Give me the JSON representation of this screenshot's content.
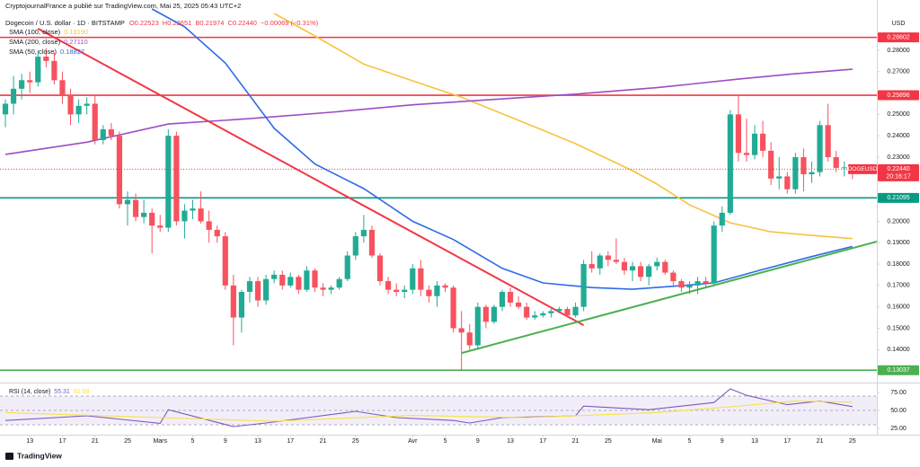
{
  "chart_data": {
    "type": "candlestick",
    "header": {
      "publisher": "CryptojournalFrance a publié sur TradingView.com, Mai 25, 2025 05:43 UTC+2",
      "symbol": "Dogecoin / U.S. dollar · 1D · BITSTAMP",
      "ohlc": [
        "O0.22523",
        "H0.22651",
        "B0.21974",
        "C0.22440",
        "−0.00069 (−0.31%)"
      ]
    },
    "currency": "USD",
    "up_color": "#22ab94",
    "down_color": "#f7525f",
    "x": [
      "2025-02-10",
      "2025-02-11",
      "2025-02-12",
      "2025-02-13",
      "2025-02-14",
      "2025-02-15",
      "2025-02-16",
      "2025-02-17",
      "2025-02-18",
      "2025-02-19",
      "2025-02-20",
      "2025-02-21",
      "2025-02-22",
      "2025-02-23",
      "2025-02-24",
      "2025-02-25",
      "2025-02-26",
      "2025-02-27",
      "2025-02-28",
      "2025-03-01",
      "2025-03-02",
      "2025-03-03",
      "2025-03-04",
      "2025-03-05",
      "2025-03-06",
      "2025-03-07",
      "2025-03-08",
      "2025-03-09",
      "2025-03-10",
      "2025-03-11",
      "2025-03-12",
      "2025-03-13",
      "2025-03-14",
      "2025-03-15",
      "2025-03-16",
      "2025-03-17",
      "2025-03-18",
      "2025-03-19",
      "2025-03-20",
      "2025-03-21",
      "2025-03-22",
      "2025-03-23",
      "2025-03-24",
      "2025-03-25",
      "2025-03-26",
      "2025-03-27",
      "2025-03-28",
      "2025-03-29",
      "2025-03-30",
      "2025-03-31",
      "2025-04-01",
      "2025-04-02",
      "2025-04-03",
      "2025-04-04",
      "2025-04-05",
      "2025-04-06",
      "2025-04-07",
      "2025-04-08",
      "2025-04-09",
      "2025-04-10",
      "2025-04-11",
      "2025-04-12",
      "2025-04-13",
      "2025-04-14",
      "2025-04-15",
      "2025-04-16",
      "2025-04-17",
      "2025-04-18",
      "2025-04-19",
      "2025-04-20",
      "2025-04-21",
      "2025-04-22",
      "2025-04-23",
      "2025-04-24",
      "2025-04-25",
      "2025-04-26",
      "2025-04-27",
      "2025-04-28",
      "2025-04-29",
      "2025-04-30",
      "2025-05-01",
      "2025-05-02",
      "2025-05-03",
      "2025-05-04",
      "2025-05-05",
      "2025-05-06",
      "2025-05-07",
      "2025-05-08",
      "2025-05-09",
      "2025-05-10",
      "2025-05-11",
      "2025-05-12",
      "2025-05-13",
      "2025-05-14",
      "2025-05-15",
      "2025-05-16",
      "2025-05-17",
      "2025-05-18",
      "2025-05-19",
      "2025-05-20",
      "2025-05-21",
      "2025-05-22",
      "2025-05-23",
      "2025-05-24",
      "2025-05-25"
    ],
    "open": [
      0.25,
      0.255,
      0.262,
      0.266,
      0.265,
      0.277,
      0.275,
      0.266,
      0.259,
      0.25,
      0.254,
      0.255,
      0.238,
      0.243,
      0.24,
      0.208,
      0.21,
      0.202,
      0.204,
      0.198,
      0.197,
      0.24,
      0.2,
      0.205,
      0.206,
      0.2,
      0.196,
      0.193,
      0.17,
      0.155,
      0.167,
      0.172,
      0.163,
      0.173,
      0.175,
      0.17,
      0.174,
      0.168,
      0.177,
      0.169,
      0.168,
      0.169,
      0.173,
      0.184,
      0.193,
      0.196,
      0.184,
      0.172,
      0.168,
      0.167,
      0.168,
      0.178,
      0.168,
      0.165,
      0.17,
      0.169,
      0.15,
      0.148,
      0.142,
      0.16,
      0.153,
      0.16,
      0.167,
      0.162,
      0.16,
      0.155,
      0.156,
      0.157,
      0.158,
      0.159,
      0.156,
      0.16,
      0.18,
      0.178,
      0.184,
      0.182,
      0.181,
      0.177,
      0.179,
      0.174,
      0.179,
      0.181,
      0.176,
      0.172,
      0.169,
      0.17,
      0.172,
      0.171,
      0.198,
      0.204,
      0.25,
      0.232,
      0.231,
      0.241,
      0.233,
      0.22,
      0.221,
      0.215,
      0.23,
      0.222,
      0.223,
      0.245,
      0.23,
      0.225,
      0.22523
    ],
    "high": [
      0.257,
      0.268,
      0.269,
      0.27,
      0.28,
      0.281,
      0.279,
      0.27,
      0.262,
      0.257,
      0.258,
      0.259,
      0.245,
      0.246,
      0.242,
      0.214,
      0.213,
      0.21,
      0.206,
      0.203,
      0.243,
      0.242,
      0.208,
      0.21,
      0.214,
      0.205,
      0.198,
      0.195,
      0.175,
      0.168,
      0.174,
      0.174,
      0.175,
      0.177,
      0.177,
      0.176,
      0.175,
      0.179,
      0.178,
      0.171,
      0.17,
      0.174,
      0.186,
      0.195,
      0.203,
      0.198,
      0.185,
      0.174,
      0.171,
      0.17,
      0.18,
      0.182,
      0.17,
      0.172,
      0.171,
      0.17,
      0.158,
      0.152,
      0.162,
      0.161,
      0.161,
      0.168,
      0.169,
      0.165,
      0.162,
      0.158,
      0.158,
      0.159,
      0.16,
      0.16,
      0.162,
      0.182,
      0.186,
      0.185,
      0.186,
      0.192,
      0.183,
      0.181,
      0.181,
      0.18,
      0.183,
      0.182,
      0.177,
      0.173,
      0.172,
      0.174,
      0.174,
      0.2,
      0.207,
      0.252,
      0.259,
      0.248,
      0.245,
      0.247,
      0.237,
      0.23,
      0.223,
      0.232,
      0.234,
      0.228,
      0.247,
      0.255,
      0.233,
      0.228,
      0.22651
    ],
    "low": [
      0.244,
      0.25,
      0.257,
      0.26,
      0.263,
      0.272,
      0.264,
      0.255,
      0.245,
      0.246,
      0.25,
      0.236,
      0.236,
      0.238,
      0.206,
      0.198,
      0.2,
      0.199,
      0.185,
      0.195,
      0.195,
      0.198,
      0.192,
      0.201,
      0.199,
      0.19,
      0.19,
      0.168,
      0.142,
      0.148,
      0.162,
      0.16,
      0.161,
      0.171,
      0.168,
      0.169,
      0.166,
      0.167,
      0.167,
      0.165,
      0.166,
      0.168,
      0.172,
      0.182,
      0.19,
      0.183,
      0.17,
      0.166,
      0.165,
      0.164,
      0.166,
      0.165,
      0.162,
      0.16,
      0.167,
      0.148,
      0.13,
      0.14,
      0.14,
      0.15,
      0.152,
      0.158,
      0.16,
      0.159,
      0.154,
      0.154,
      0.155,
      0.155,
      0.157,
      0.155,
      0.155,
      0.158,
      0.176,
      0.175,
      0.179,
      0.18,
      0.175,
      0.172,
      0.172,
      0.17,
      0.177,
      0.175,
      0.17,
      0.167,
      0.166,
      0.166,
      0.169,
      0.17,
      0.195,
      0.203,
      0.228,
      0.228,
      0.229,
      0.23,
      0.217,
      0.215,
      0.213,
      0.213,
      0.214,
      0.218,
      0.221,
      0.228,
      0.223,
      0.221,
      0.21974
    ],
    "close": [
      0.255,
      0.262,
      0.266,
      0.265,
      0.277,
      0.275,
      0.266,
      0.259,
      0.25,
      0.254,
      0.255,
      0.238,
      0.243,
      0.24,
      0.208,
      0.21,
      0.202,
      0.204,
      0.198,
      0.197,
      0.24,
      0.2,
      0.205,
      0.206,
      0.2,
      0.196,
      0.193,
      0.17,
      0.155,
      0.167,
      0.172,
      0.163,
      0.173,
      0.175,
      0.17,
      0.174,
      0.168,
      0.177,
      0.169,
      0.168,
      0.169,
      0.173,
      0.184,
      0.193,
      0.196,
      0.184,
      0.172,
      0.168,
      0.167,
      0.168,
      0.178,
      0.168,
      0.165,
      0.17,
      0.169,
      0.15,
      0.148,
      0.142,
      0.16,
      0.153,
      0.16,
      0.167,
      0.162,
      0.16,
      0.155,
      0.156,
      0.157,
      0.158,
      0.159,
      0.156,
      0.16,
      0.18,
      0.178,
      0.184,
      0.182,
      0.181,
      0.177,
      0.179,
      0.174,
      0.179,
      0.181,
      0.176,
      0.172,
      0.169,
      0.17,
      0.172,
      0.171,
      0.198,
      0.204,
      0.25,
      0.232,
      0.231,
      0.241,
      0.233,
      0.22,
      0.221,
      0.215,
      0.23,
      0.222,
      0.223,
      0.245,
      0.23,
      0.225,
      0.22523,
      0.2244
    ],
    "xlim": [
      "2025-02-10",
      "2025-05-28"
    ],
    "ylim": [
      0.125,
      0.3035
    ],
    "yticks": [
      {
        "value": 0.28,
        "label": "0.28000"
      },
      {
        "value": 0.27,
        "label": "0.27000"
      },
      {
        "value": 0.25,
        "label": "0.25000"
      },
      {
        "value": 0.24,
        "label": "0.24000"
      },
      {
        "value": 0.23,
        "label": "0.23000"
      },
      {
        "value": 0.2,
        "label": "0.20000"
      },
      {
        "value": 0.19,
        "label": "0.19000"
      },
      {
        "value": 0.18,
        "label": "0.18000"
      },
      {
        "value": 0.17,
        "label": "0.17000"
      },
      {
        "value": 0.16,
        "label": "0.16000"
      },
      {
        "value": 0.15,
        "label": "0.15000"
      },
      {
        "value": 0.14,
        "label": "0.14000"
      }
    ],
    "xticks": [
      {
        "value": "2025-02-13",
        "label": "13"
      },
      {
        "value": "2025-02-17",
        "label": "17"
      },
      {
        "value": "2025-02-21",
        "label": "21"
      },
      {
        "value": "2025-02-25",
        "label": "25"
      },
      {
        "value": "2025-03-01",
        "label": "Mars"
      },
      {
        "value": "2025-03-05",
        "label": "5"
      },
      {
        "value": "2025-03-09",
        "label": "9"
      },
      {
        "value": "2025-03-13",
        "label": "13"
      },
      {
        "value": "2025-03-17",
        "label": "17"
      },
      {
        "value": "2025-03-21",
        "label": "21"
      },
      {
        "value": "2025-03-25",
        "label": "25"
      },
      {
        "value": "2025-04-01",
        "label": "Avr"
      },
      {
        "value": "2025-04-05",
        "label": "5"
      },
      {
        "value": "2025-04-09",
        "label": "9"
      },
      {
        "value": "2025-04-13",
        "label": "13"
      },
      {
        "value": "2025-04-17",
        "label": "17"
      },
      {
        "value": "2025-04-21",
        "label": "21"
      },
      {
        "value": "2025-04-25",
        "label": "25"
      },
      {
        "value": "2025-05-01",
        "label": "Mai"
      },
      {
        "value": "2025-05-05",
        "label": "5"
      },
      {
        "value": "2025-05-09",
        "label": "9"
      },
      {
        "value": "2025-05-13",
        "label": "13"
      },
      {
        "value": "2025-05-17",
        "label": "17"
      },
      {
        "value": "2025-05-21",
        "label": "21"
      },
      {
        "value": "2025-05-25",
        "label": "25"
      }
    ],
    "indicators": [
      {
        "name": "SMA (100, close)",
        "color": "#f7c33d",
        "last": {
          "value": 0.1919,
          "label": "0.19190"
        },
        "x": [
          "2025-03-15",
          "2025-03-20",
          "2025-03-26",
          "2025-04-01",
          "2025-04-07",
          "2025-04-17",
          "2025-04-21",
          "2025-04-28",
          "2025-05-01",
          "2025-05-05",
          "2025-05-10",
          "2025-05-15",
          "2025-05-20",
          "2025-05-25"
        ],
        "values": [
          0.2972,
          0.2867,
          0.2735,
          0.2657,
          0.258,
          0.2426,
          0.2363,
          0.2237,
          0.2174,
          0.2077,
          0.1993,
          0.1951,
          0.1934,
          0.1919
        ]
      },
      {
        "name": "SMA (200, close)",
        "color": "#9c4dc4",
        "last": {
          "value": 0.2711,
          "label": "0.27110"
        },
        "x": [
          "2025-02-10",
          "2025-02-20",
          "2025-03-02",
          "2025-03-12",
          "2025-03-22",
          "2025-04-01",
          "2025-04-11",
          "2025-04-21",
          "2025-05-01",
          "2025-05-11",
          "2025-05-18",
          "2025-05-25"
        ],
        "values": [
          0.2313,
          0.237,
          0.2455,
          0.248,
          0.251,
          0.2545,
          0.257,
          0.2595,
          0.2625,
          0.2665,
          0.269,
          0.2711
        ]
      },
      {
        "name": "SMA (50, close)",
        "color": "#2e6be6",
        "last": 0.18827,
        "x": [
          "2025-02-28",
          "2025-03-04",
          "2025-03-09",
          "2025-03-15",
          "2025-03-20",
          "2025-03-26",
          "2025-04-01",
          "2025-04-06",
          "2025-04-12",
          "2025-04-17",
          "2025-04-23",
          "2025-04-28",
          "2025-05-04",
          "2025-05-08",
          "2025-05-14",
          "2025-05-20",
          "2025-05-25"
        ],
        "values": [
          0.2993,
          0.291,
          0.274,
          0.2435,
          0.2268,
          0.2153,
          0.2,
          0.1915,
          0.178,
          0.1712,
          0.169,
          0.1682,
          0.1699,
          0.1712,
          0.1775,
          0.1835,
          0.18827
        ]
      }
    ],
    "levels": [
      {
        "value": 0.28602,
        "color": "#f23645"
      },
      {
        "value": 0.25896,
        "color": "#f23645"
      },
      {
        "value": 0.21095,
        "color": "#089981"
      },
      {
        "value": 0.13037,
        "color": "#4caf50"
      }
    ],
    "trendlines": [
      {
        "color": "#f23645",
        "x": [
          "2025-02-14",
          "2025-04-22"
        ],
        "values": [
          0.2901,
          0.1514
        ]
      },
      {
        "color": "#4caf50",
        "x": [
          "2025-04-07",
          "2025-05-28"
        ],
        "values": [
          0.1384,
          0.1905
        ]
      }
    ],
    "price_badge": {
      "symbol": "DOGEUSD",
      "value": {
        "value": 0.2244,
        "label": "0.22440"
      },
      "countdown": "20:16:17",
      "color": "#f23645"
    },
    "rsi": {
      "name": "RSI (14, close)",
      "ylim": [
        17.5,
        86.25
      ],
      "yticks": [
        {
          "value": 75,
          "label": "75.00"
        },
        {
          "value": 50,
          "label": "50.00"
        },
        {
          "value": 25,
          "label": "25.00"
        }
      ],
      "levels": [
        70,
        50,
        30
      ],
      "series": [
        {
          "color": "#7e57c2",
          "last": 55.31,
          "x": [
            "2025-02-10",
            "2025-02-20",
            "2025-03-01",
            "2025-03-02",
            "2025-03-10",
            "2025-03-14",
            "2025-03-25",
            "2025-03-30",
            "2025-04-06",
            "2025-04-08",
            "2025-04-12",
            "2025-04-21",
            "2025-04-22",
            "2025-04-30",
            "2025-05-08",
            "2025-05-10",
            "2025-05-12",
            "2025-05-17",
            "2025-05-21",
            "2025-05-25"
          ],
          "values": [
            36,
            42.5,
            32,
            51,
            27.5,
            32.5,
            48.7,
            40,
            36,
            32.5,
            40,
            42.5,
            56,
            51,
            61,
            80,
            71,
            58,
            63,
            55.31
          ]
        },
        {
          "color": "#f7e23d",
          "last": 61.58,
          "x": [
            "2025-02-10",
            "2025-03-01",
            "2025-03-15",
            "2025-04-01",
            "2025-04-15",
            "2025-05-01",
            "2025-05-10",
            "2025-05-18",
            "2025-05-25"
          ],
          "values": [
            47,
            40,
            35,
            43,
            40,
            47,
            55,
            63,
            61.58
          ]
        }
      ]
    },
    "footer": "TradingView"
  }
}
